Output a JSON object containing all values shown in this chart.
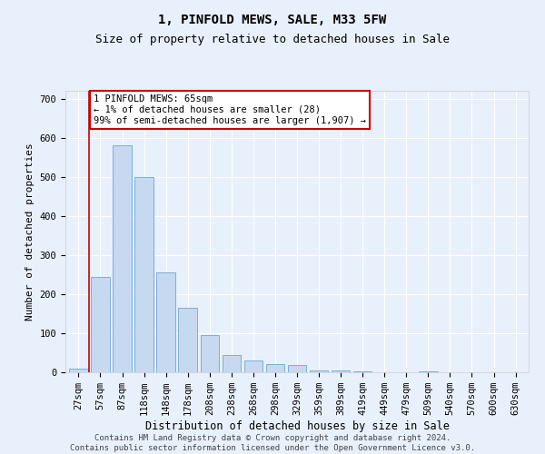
{
  "title1": "1, PINFOLD MEWS, SALE, M33 5FW",
  "title2": "Size of property relative to detached houses in Sale",
  "xlabel": "Distribution of detached houses by size in Sale",
  "ylabel": "Number of detached properties",
  "bar_labels": [
    "27sqm",
    "57sqm",
    "87sqm",
    "118sqm",
    "148sqm",
    "178sqm",
    "208sqm",
    "238sqm",
    "268sqm",
    "298sqm",
    "329sqm",
    "359sqm",
    "389sqm",
    "419sqm",
    "449sqm",
    "479sqm",
    "509sqm",
    "540sqm",
    "570sqm",
    "600sqm",
    "630sqm"
  ],
  "bar_values": [
    10,
    245,
    580,
    500,
    255,
    165,
    95,
    45,
    30,
    20,
    18,
    5,
    5,
    3,
    0,
    0,
    2,
    0,
    0,
    0,
    0
  ],
  "bar_color": "#c6d9f0",
  "bar_edge_color": "#7bafd4",
  "vline_x": 0.5,
  "vline_color": "#cc0000",
  "annotation_text": "1 PINFOLD MEWS: 65sqm\n← 1% of detached houses are smaller (28)\n99% of semi-detached houses are larger (1,907) →",
  "annotation_box_color": "#ffffff",
  "annotation_box_edge": "#cc0000",
  "ylim": [
    0,
    720
  ],
  "yticks": [
    0,
    100,
    200,
    300,
    400,
    500,
    600,
    700
  ],
  "footer": "Contains HM Land Registry data © Crown copyright and database right 2024.\nContains public sector information licensed under the Open Government Licence v3.0.",
  "bg_color": "#e8f0fb",
  "plot_bg_color": "#e8f0fb",
  "grid_color": "#ffffff",
  "title1_fontsize": 10,
  "title2_fontsize": 9,
  "xlabel_fontsize": 8.5,
  "ylabel_fontsize": 8,
  "tick_fontsize": 7.5,
  "footer_fontsize": 6.5,
  "annotation_fontsize": 7.5
}
